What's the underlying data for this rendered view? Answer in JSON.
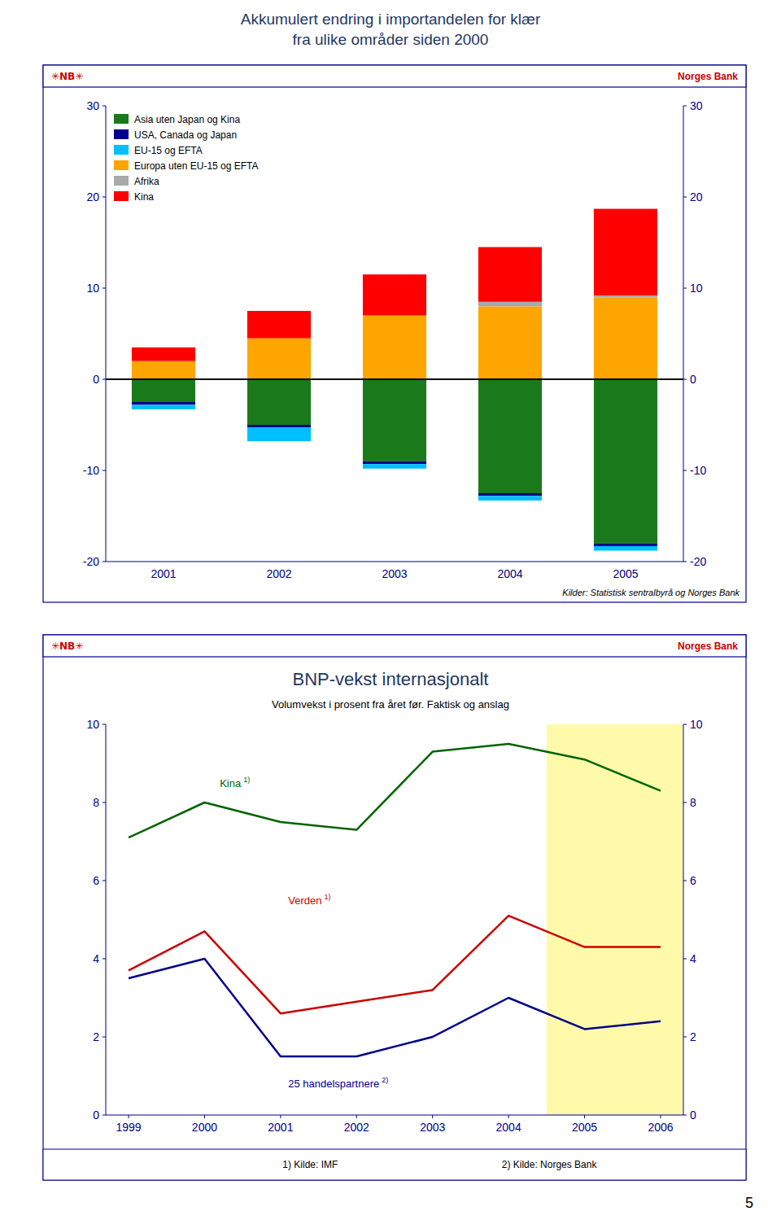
{
  "chart_data": [
    {
      "type": "bar",
      "stacked": true,
      "title": "Akkumulert endring i importandelen for klær\nfra ulike områder siden 2000",
      "source": "Kilder: Statistisk sentralbyrå og Norges Bank",
      "categories": [
        "2001",
        "2002",
        "2003",
        "2004",
        "2005"
      ],
      "series": [
        {
          "name": "Asia uten Japan og Kina",
          "color": "#1a7a1a",
          "values": [
            -2.5,
            -5.0,
            -9.0,
            -12.5,
            -18.0
          ]
        },
        {
          "name": "USA, Canada og Japan",
          "color": "#00008B",
          "values": [
            -0.3,
            -0.3,
            -0.3,
            -0.3,
            -0.3
          ]
        },
        {
          "name": "EU-15 og EFTA",
          "color": "#00BFFF",
          "values": [
            -0.5,
            -1.5,
            -0.5,
            -0.5,
            -0.5
          ]
        },
        {
          "name": "Europa uten EU-15 og EFTA",
          "color": "#FFA500",
          "values": [
            2.0,
            4.5,
            7.0,
            8.0,
            9.0
          ]
        },
        {
          "name": "Afrika",
          "color": "#A9A9A9",
          "values": [
            0.0,
            0.0,
            0.0,
            0.5,
            0.2
          ]
        },
        {
          "name": "Kina",
          "color": "#FF0000",
          "values": [
            1.5,
            3.0,
            4.5,
            6.0,
            9.5
          ]
        }
      ],
      "ylim": [
        -20,
        30
      ],
      "yticks": [
        -20,
        -10,
        0,
        10,
        20,
        30
      ],
      "grid": false,
      "legend": "upper left"
    },
    {
      "type": "line",
      "title": "BNP-vekst internasjonalt",
      "subtitle": "Volumvekst i prosent fra året før. Faktisk og anslag",
      "x": [
        1999,
        2000,
        2001,
        2002,
        2003,
        2004,
        2005,
        2006
      ],
      "xlim": [
        1998.7,
        2006.3
      ],
      "xticks": [
        1999,
        2000,
        2001,
        2002,
        2003,
        2004,
        2005,
        2006
      ],
      "series": [
        {
          "name": "Kina",
          "color": "#006400",
          "values": [
            7.1,
            8.0,
            7.5,
            7.3,
            9.3,
            9.5,
            9.1,
            8.3
          ]
        },
        {
          "name": "Verden",
          "color": "#CC0000",
          "values": [
            3.7,
            4.7,
            2.6,
            2.9,
            3.2,
            5.1,
            4.3,
            4.3
          ]
        },
        {
          "name": "25 handelspartnere",
          "color": "#00008B",
          "values": [
            3.5,
            4.0,
            1.5,
            1.5,
            2.0,
            3.0,
            2.2,
            2.4
          ]
        }
      ],
      "ylim": [
        0,
        10
      ],
      "yticks": [
        0,
        2,
        4,
        6,
        8,
        10
      ],
      "grid": false,
      "shaded_x_range": [
        2004.5,
        2006.5
      ],
      "shade_color": "#FFFAAA",
      "annotations": [
        {
          "series": 0,
          "note": "1)",
          "x": 2000.2,
          "y": 8.4
        },
        {
          "series": 1,
          "note": "1)",
          "x": 2001.1,
          "y": 5.4
        },
        {
          "series": 2,
          "note": "2)",
          "x": 2001.1,
          "y": 0.7
        }
      ],
      "footnotes": [
        "1) Kilde: IMF",
        "2) Kilde: Norges Bank"
      ]
    }
  ],
  "page": {
    "brand_symbol": "✳NB✳",
    "brand": "Norges Bank",
    "brand_color": "#CC0000",
    "title_color": "#1F3864",
    "border_color": "#00008B",
    "number": "5"
  }
}
